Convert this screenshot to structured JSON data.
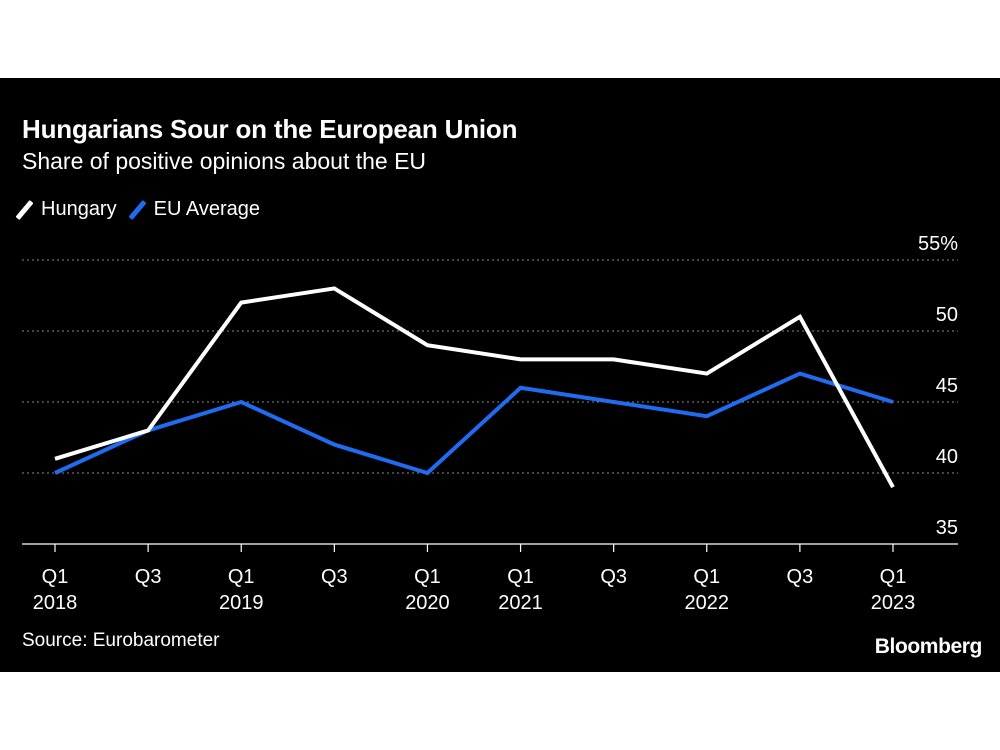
{
  "header": {
    "title": "Hungarians Sour on the European Union",
    "subtitle": "Share of positive opinions about the EU"
  },
  "legend": [
    {
      "label": "Hungary",
      "color": "#ffffff"
    },
    {
      "label": "EU Average",
      "color": "#1f6cf0"
    }
  ],
  "footer": {
    "source": "Source: Eurobarometer",
    "brand": "Bloomberg"
  },
  "colors": {
    "background": "#000000",
    "hungary": "#ffffff",
    "eu": "#1f6cf0",
    "grid": "#8a8a8a"
  },
  "chart_data": {
    "type": "line",
    "title": "Hungarians Sour on the European Union",
    "subtitle": "Share of positive opinions about the EU",
    "xlabel": "",
    "ylabel": "",
    "ylim": [
      35,
      55
    ],
    "yticks": [
      35,
      40,
      45,
      50,
      55
    ],
    "ytick_labels": [
      "35",
      "40",
      "45",
      "50",
      "55%"
    ],
    "x": [
      "Q1 2018",
      "Q3 2018",
      "Q1 2019",
      "Q3 2019",
      "Q1 2020",
      "Q1 2021",
      "Q3 2021",
      "Q1 2022",
      "Q3 2022",
      "Q1 2023"
    ],
    "x_tick_labels": [
      {
        "top": "Q1",
        "bottom": "2018"
      },
      {
        "top": "Q3",
        "bottom": ""
      },
      {
        "top": "Q1",
        "bottom": "2019"
      },
      {
        "top": "Q3",
        "bottom": ""
      },
      {
        "top": "Q1",
        "bottom": "2020"
      },
      {
        "top": "Q1",
        "bottom": "2021"
      },
      {
        "top": "Q3",
        "bottom": ""
      },
      {
        "top": "Q1",
        "bottom": "2022"
      },
      {
        "top": "Q3",
        "bottom": ""
      },
      {
        "top": "Q1",
        "bottom": "2023"
      }
    ],
    "series": [
      {
        "name": "Hungary",
        "values": [
          41,
          43,
          52,
          53,
          49,
          48,
          48,
          47,
          51,
          39
        ]
      },
      {
        "name": "EU Average",
        "values": [
          40,
          43,
          45,
          42,
          40,
          46,
          45,
          44,
          47,
          45
        ]
      }
    ],
    "grid": true,
    "legend_position": "top-left"
  }
}
